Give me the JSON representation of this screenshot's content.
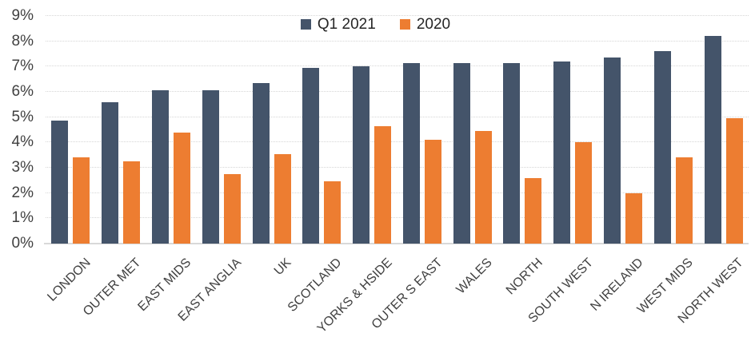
{
  "chart_data": {
    "type": "bar",
    "title": "",
    "xlabel": "",
    "ylabel": "",
    "categories": [
      "LONDON",
      "OUTER MET",
      "EAST MIDS",
      "EAST ANGLIA",
      "UK",
      "SCOTLAND",
      "YORKS & HSIDE",
      "OUTER S EAST",
      "WALES",
      "NORTH",
      "SOUTH WEST",
      "N IRELAND",
      "WEST MIDS",
      "NORTH WEST"
    ],
    "series": [
      {
        "name": "Q1 2021",
        "color": "#44546A",
        "values": [
          4.85,
          5.6,
          6.05,
          6.05,
          6.35,
          6.95,
          7.0,
          7.15,
          7.15,
          7.15,
          7.2,
          7.35,
          7.6,
          8.2
        ]
      },
      {
        "name": "2020",
        "color": "#ED7D31",
        "values": [
          3.4,
          3.25,
          4.4,
          2.75,
          3.55,
          2.45,
          4.65,
          4.1,
          4.45,
          2.6,
          4.0,
          2.0,
          3.4,
          4.95
        ]
      }
    ],
    "value_suffix": "%",
    "ylim": [
      0,
      9
    ],
    "y_tick_step": 1,
    "y_tick_labels": [
      "0%",
      "1%",
      "2%",
      "3%",
      "4%",
      "5%",
      "6%",
      "7%",
      "8%",
      "9%"
    ],
    "grid": "horizontal-dotted",
    "legend_position": "top-center",
    "colors": {
      "gridline": "#d6d6d6",
      "axis_line": "#d9d9d9",
      "axis_text": "#404040",
      "legend_text": "#262626",
      "background": "#ffffff"
    }
  }
}
